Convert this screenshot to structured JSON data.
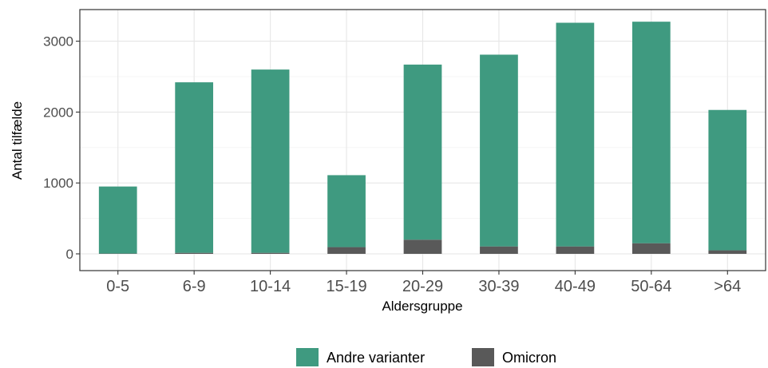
{
  "chart_data": {
    "type": "bar",
    "stacked": true,
    "categories": [
      "0-5",
      "6-9",
      "10-14",
      "15-19",
      "20-29",
      "30-39",
      "40-49",
      "50-64",
      ">64"
    ],
    "series": [
      {
        "name": "Omicron",
        "color": "#595959",
        "values": [
          5,
          15,
          15,
          95,
          200,
          105,
          105,
          150,
          50
        ]
      },
      {
        "name": "Andre varianter",
        "color": "#3f9a80",
        "values": [
          945,
          2405,
          2585,
          1015,
          2470,
          2705,
          3155,
          3125,
          1980
        ]
      }
    ],
    "xlabel": "Aldersgruppe",
    "ylabel": "Antal tilfælde",
    "ylim": [
      0,
      3430
    ],
    "yticks": [
      0,
      1000,
      2000,
      3000
    ],
    "grid": true,
    "legend_position": "bottom",
    "legend_order": [
      "Andre varianter",
      "Omicron"
    ]
  }
}
